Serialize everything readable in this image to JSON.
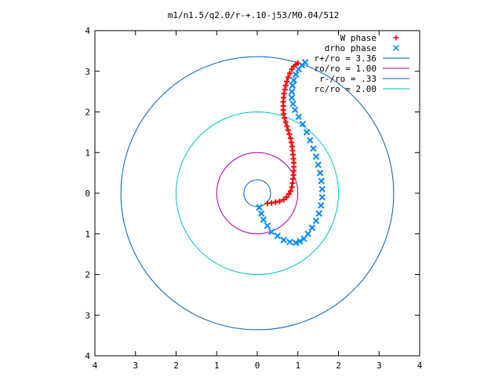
{
  "chart_data": {
    "type": "scatter",
    "title": "m1/n1.5/q2.0/r-+.10-j53/M0.04/512",
    "xlim": [
      -4,
      4
    ],
    "ylim": [
      -4,
      4
    ],
    "x_tick_labels": [
      "4",
      "3",
      "2",
      "1",
      "0",
      "1",
      "2",
      "3",
      "4"
    ],
    "y_tick_labels": [
      "4",
      "3",
      "2",
      "1",
      "0",
      "1",
      "2",
      "3",
      "4"
    ],
    "x_tick_values": [
      -4,
      -3,
      -2,
      -1,
      0,
      1,
      2,
      3,
      4
    ],
    "y_tick_values": [
      4,
      3,
      2,
      1,
      0,
      -1,
      -2,
      -3,
      -4
    ],
    "grid": false,
    "legend_position": "top-right",
    "series": [
      {
        "name": "W phase",
        "marker": "+",
        "color": "#ff0000",
        "points": [
          [
            0.25,
            -0.25
          ],
          [
            0.35,
            -0.24
          ],
          [
            0.45,
            -0.22
          ],
          [
            0.55,
            -0.2
          ],
          [
            0.65,
            -0.16
          ],
          [
            0.72,
            -0.1
          ],
          [
            0.78,
            -0.02
          ],
          [
            0.82,
            0.05
          ],
          [
            0.85,
            0.15
          ],
          [
            0.87,
            0.25
          ],
          [
            0.88,
            0.35
          ],
          [
            0.89,
            0.45
          ],
          [
            0.9,
            0.55
          ],
          [
            0.9,
            0.65
          ],
          [
            0.9,
            0.75
          ],
          [
            0.89,
            0.85
          ],
          [
            0.88,
            0.95
          ],
          [
            0.87,
            1.05
          ],
          [
            0.86,
            1.15
          ],
          [
            0.84,
            1.25
          ],
          [
            0.82,
            1.35
          ],
          [
            0.79,
            1.45
          ],
          [
            0.76,
            1.55
          ],
          [
            0.73,
            1.65
          ],
          [
            0.7,
            1.75
          ],
          [
            0.67,
            1.85
          ],
          [
            0.65,
            1.95
          ],
          [
            0.64,
            2.05
          ],
          [
            0.64,
            2.15
          ],
          [
            0.64,
            2.25
          ],
          [
            0.65,
            2.35
          ],
          [
            0.66,
            2.45
          ],
          [
            0.68,
            2.55
          ],
          [
            0.7,
            2.65
          ],
          [
            0.73,
            2.75
          ],
          [
            0.76,
            2.85
          ],
          [
            0.8,
            2.95
          ],
          [
            0.85,
            3.05
          ],
          [
            0.9,
            3.12
          ],
          [
            0.95,
            3.17
          ],
          [
            1.0,
            3.2
          ]
        ]
      },
      {
        "name": "drho phase",
        "marker": "x",
        "color": "#0088ff",
        "points": [
          [
            0.05,
            -0.35
          ],
          [
            0.1,
            -0.5
          ],
          [
            0.15,
            -0.65
          ],
          [
            0.25,
            -0.8
          ],
          [
            0.35,
            -0.95
          ],
          [
            0.5,
            -1.05
          ],
          [
            0.65,
            -1.15
          ],
          [
            0.8,
            -1.2
          ],
          [
            0.95,
            -1.22
          ],
          [
            1.05,
            -1.18
          ],
          [
            1.15,
            -1.12
          ],
          [
            1.25,
            -1.0
          ],
          [
            1.35,
            -0.85
          ],
          [
            1.45,
            -0.68
          ],
          [
            1.52,
            -0.5
          ],
          [
            1.57,
            -0.3
          ],
          [
            1.6,
            -0.1
          ],
          [
            1.6,
            0.1
          ],
          [
            1.58,
            0.3
          ],
          [
            1.55,
            0.5
          ],
          [
            1.5,
            0.7
          ],
          [
            1.45,
            0.9
          ],
          [
            1.38,
            1.1
          ],
          [
            1.3,
            1.3
          ],
          [
            1.22,
            1.5
          ],
          [
            1.12,
            1.7
          ],
          [
            1.02,
            1.88
          ],
          [
            0.93,
            2.05
          ],
          [
            0.88,
            2.2
          ],
          [
            0.85,
            2.35
          ],
          [
            0.85,
            2.5
          ],
          [
            0.87,
            2.65
          ],
          [
            0.9,
            2.78
          ],
          [
            0.95,
            2.92
          ],
          [
            1.02,
            3.05
          ],
          [
            1.1,
            3.15
          ],
          [
            1.18,
            3.22
          ]
        ]
      }
    ],
    "reference_circles": [
      {
        "name": "r+/ro = 3.36",
        "radius": 3.36,
        "color": "#0060ad"
      },
      {
        "name": "ro/ro = 1.00",
        "radius": 1.0,
        "color": "#a000a0"
      },
      {
        "name": "r-/ro = .33",
        "radius": 0.33,
        "color": "#0060ad"
      },
      {
        "name": "rc/ro = 2.00",
        "radius": 2.0,
        "color": "#00c0c0"
      }
    ]
  }
}
